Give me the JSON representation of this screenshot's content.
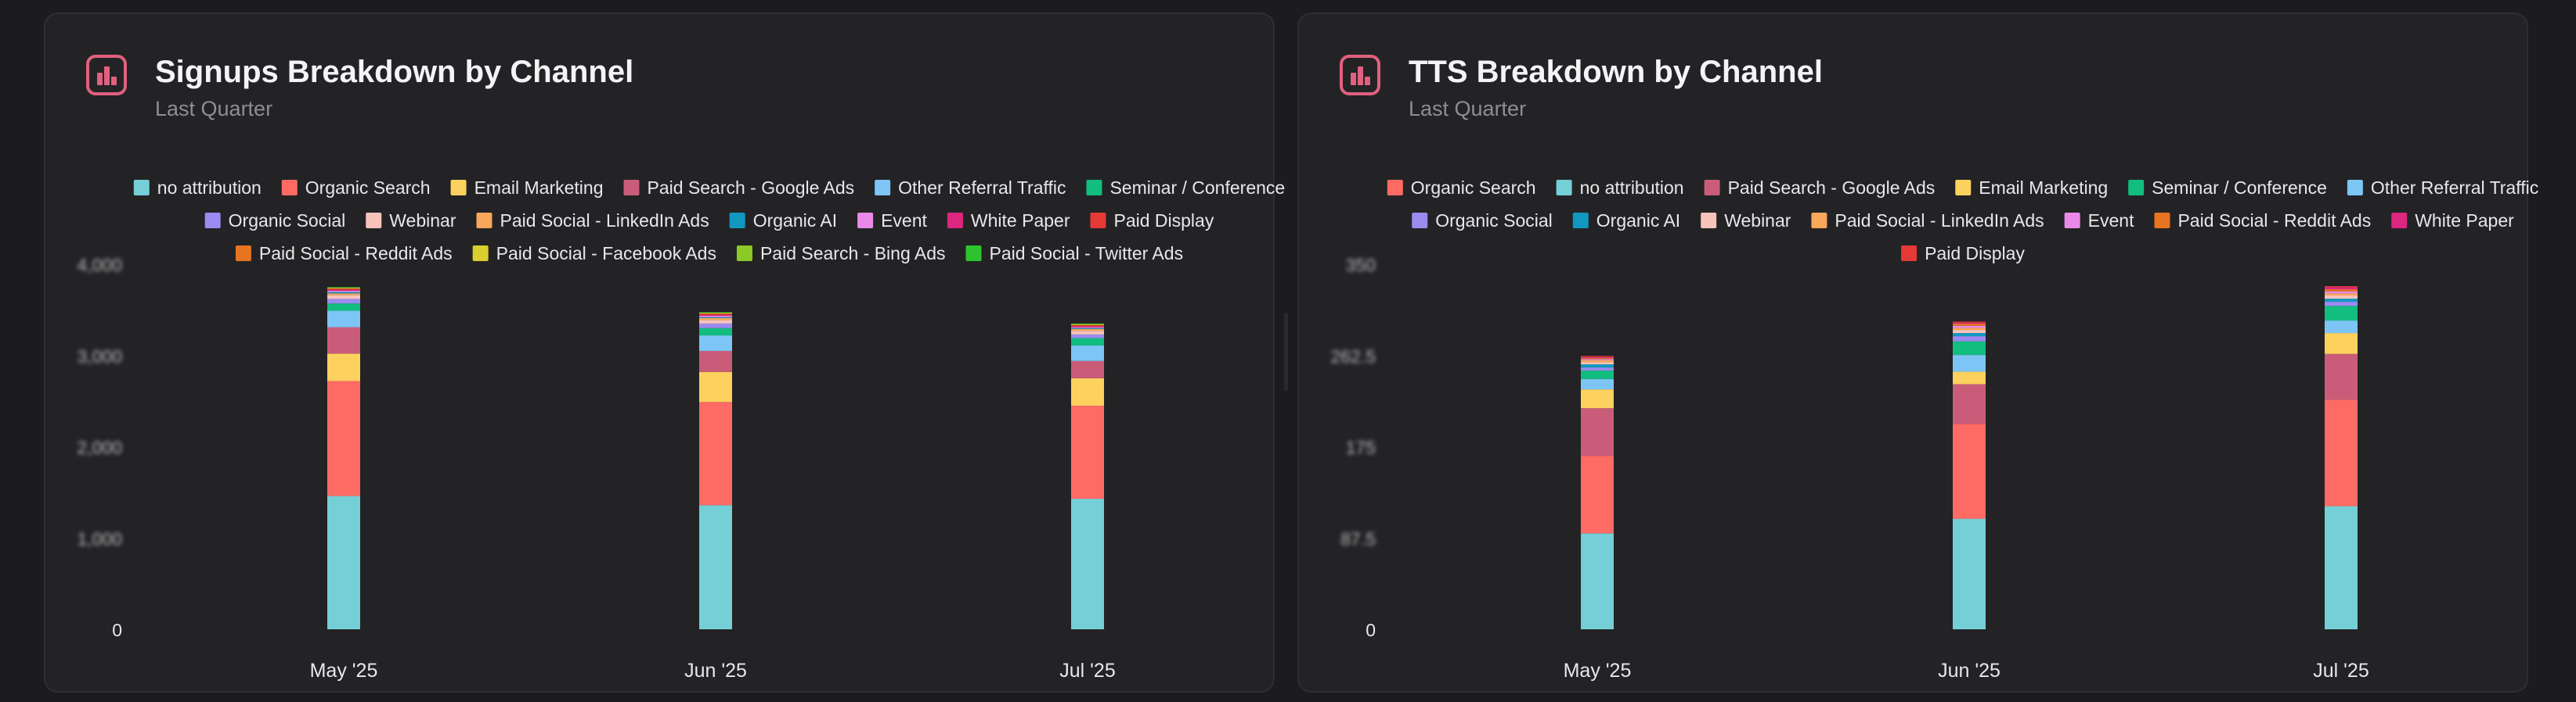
{
  "colors": {
    "accent": "#e0607e",
    "palette": {
      "no attribution": "#75cfd6",
      "Organic Search": "#fe6b65",
      "Email Marketing": "#fdd15e",
      "Paid Search - Google Ads": "#c95d79",
      "Other Referral Traffic": "#7dc5f5",
      "Seminar / Conference": "#11bd7f",
      "Organic Social": "#9c8af1",
      "Webinar": "#f8c3ba",
      "Paid Social - LinkedIn Ads": "#f9a75a",
      "Organic AI": "#1198c0",
      "Event": "#e98ae8",
      "White Paper": "#dc2680",
      "Paid Display": "#e53935",
      "Paid Social - Reddit Ads": "#e67421",
      "Paid Social - Facebook Ads": "#d9cf2e",
      "Paid Search - Bing Ads": "#8ac926",
      "Paid Social - Twitter Ads": "#2ec32e"
    }
  },
  "cards": [
    {
      "icon": "bar-chart-icon",
      "title": "Signups Breakdown by Channel",
      "subtitle": "Last Quarter"
    },
    {
      "icon": "bar-chart-icon",
      "title": "TTS Breakdown by Channel",
      "subtitle": "Last Quarter"
    }
  ],
  "chart_data": [
    {
      "type": "bar",
      "stacked": true,
      "title": "Signups Breakdown by Channel",
      "subtitle": "Last Quarter",
      "categories": [
        "May '25",
        "Jun '25",
        "Jul '25"
      ],
      "ylim": [
        0,
        4000
      ],
      "y_ticks": [
        "0",
        "1,000",
        "2,000",
        "3,000",
        "4,000"
      ],
      "y_tick_values": [
        0,
        1000,
        2000,
        3000,
        4000
      ],
      "legend_placement": "top",
      "legend_rows": [
        [
          "no attribution",
          "Organic Search",
          "Email Marketing",
          "Paid Search - Google Ads",
          "Other Referral Traffic",
          "Seminar / Conference"
        ],
        [
          "Organic Social",
          "Webinar",
          "Paid Social - LinkedIn Ads",
          "Organic AI",
          "Event",
          "White Paper",
          "Paid Display"
        ],
        [
          "Paid Social - Reddit Ads",
          "Paid Social - Facebook Ads",
          "Paid Search - Bing Ads",
          "Paid Social - Twitter Ads"
        ]
      ],
      "series": [
        {
          "name": "no attribution",
          "values": [
            1460,
            1360,
            1430
          ]
        },
        {
          "name": "Organic Search",
          "values": [
            1260,
            1130,
            1020
          ]
        },
        {
          "name": "Email Marketing",
          "values": [
            300,
            330,
            300
          ]
        },
        {
          "name": "Paid Search - Google Ads",
          "values": [
            290,
            230,
            190
          ]
        },
        {
          "name": "Other Referral Traffic",
          "values": [
            180,
            170,
            170
          ]
        },
        {
          "name": "Seminar / Conference",
          "values": [
            80,
            80,
            80
          ]
        },
        {
          "name": "Organic Social",
          "values": [
            50,
            50,
            40
          ]
        },
        {
          "name": "Webinar",
          "values": [
            40,
            40,
            40
          ]
        },
        {
          "name": "Paid Social - LinkedIn Ads",
          "values": [
            20,
            20,
            20
          ]
        },
        {
          "name": "Organic AI",
          "values": [
            15,
            10,
            10
          ]
        },
        {
          "name": "Event",
          "values": [
            15,
            15,
            10
          ]
        },
        {
          "name": "White Paper",
          "values": [
            10,
            10,
            10
          ]
        },
        {
          "name": "Paid Display",
          "values": [
            10,
            10,
            10
          ]
        },
        {
          "name": "Paid Social - Reddit Ads",
          "values": [
            5,
            5,
            5
          ]
        },
        {
          "name": "Paid Social - Facebook Ads",
          "values": [
            5,
            5,
            5
          ]
        },
        {
          "name": "Paid Search - Bing Ads",
          "values": [
            5,
            5,
            5
          ]
        },
        {
          "name": "Paid Social - Twitter Ads",
          "values": [
            5,
            5,
            5
          ]
        }
      ]
    },
    {
      "type": "bar",
      "stacked": true,
      "title": "TTS Breakdown by Channel",
      "subtitle": "Last Quarter",
      "categories": [
        "May '25",
        "Jun '25",
        "Jul '25"
      ],
      "ylim": [
        0,
        350
      ],
      "y_ticks": [
        "0",
        "87.5",
        "175",
        "262.5",
        "350"
      ],
      "y_tick_values": [
        0,
        87.5,
        175,
        262.5,
        350
      ],
      "legend_placement": "top",
      "legend_rows": [
        [
          "Organic Search",
          "no attribution",
          "Paid Search - Google Ads",
          "Email Marketing",
          "Seminar / Conference",
          "Other Referral Traffic"
        ],
        [
          "Organic Social",
          "Organic AI",
          "Webinar",
          "Paid Social - LinkedIn Ads",
          "Event",
          "Paid Social - Reddit Ads",
          "White Paper"
        ],
        [
          "Paid Display"
        ]
      ],
      "series": [
        {
          "name": "no attribution",
          "values": [
            92,
            106,
            118
          ]
        },
        {
          "name": "Organic Search",
          "values": [
            74,
            91,
            102
          ]
        },
        {
          "name": "Paid Search - Google Ads",
          "values": [
            46,
            38,
            44
          ]
        },
        {
          "name": "Email Marketing",
          "values": [
            18,
            12,
            20
          ]
        },
        {
          "name": "Other Referral Traffic",
          "values": [
            10,
            16,
            12
          ]
        },
        {
          "name": "Seminar / Conference",
          "values": [
            8,
            13,
            14
          ]
        },
        {
          "name": "Organic Social",
          "values": [
            3,
            5,
            4
          ]
        },
        {
          "name": "Organic AI",
          "values": [
            3,
            3,
            3
          ]
        },
        {
          "name": "Webinar",
          "values": [
            2,
            3,
            3
          ]
        },
        {
          "name": "Paid Social - LinkedIn Ads",
          "values": [
            2,
            2,
            2
          ]
        },
        {
          "name": "Event",
          "values": [
            1,
            2,
            2
          ]
        },
        {
          "name": "Paid Social - Reddit Ads",
          "values": [
            1,
            2,
            2
          ]
        },
        {
          "name": "White Paper",
          "values": [
            1,
            1,
            2
          ]
        },
        {
          "name": "Paid Display",
          "values": [
            1,
            1,
            1
          ]
        }
      ]
    }
  ]
}
